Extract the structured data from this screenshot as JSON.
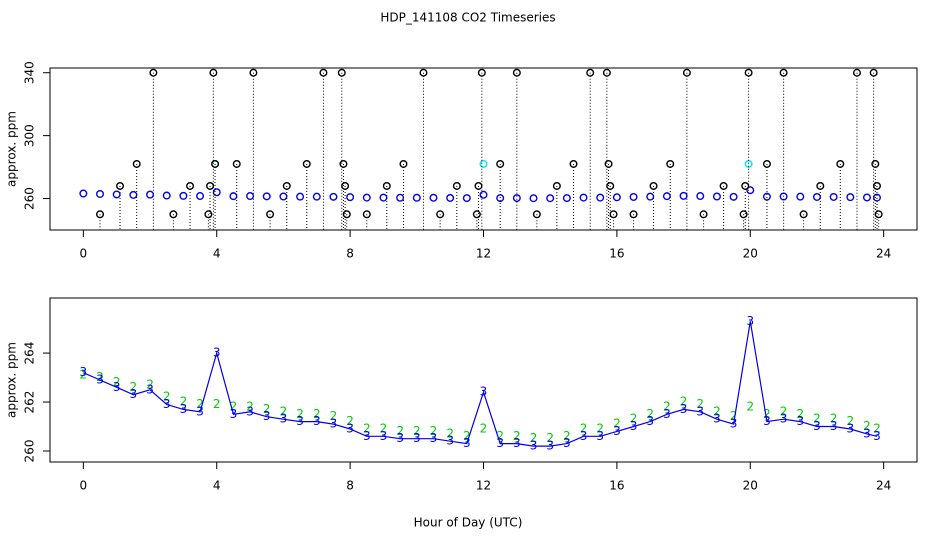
{
  "chart_data": [
    {
      "type": "scatter",
      "title": "HDP_141108  CO2 Timeseries",
      "ylabel": "approx. ppm",
      "xlim": [
        -1,
        25
      ],
      "ylim": [
        240,
        343
      ],
      "xticks": [
        0,
        4,
        8,
        12,
        16,
        20,
        24
      ],
      "yticks": [
        260,
        300,
        340
      ],
      "series": [
        {
          "color": "#0000ee",
          "marker": "circle",
          "line": false,
          "x": [
            0,
            0.5,
            1,
            1.5,
            2,
            2.5,
            3,
            3.5,
            4,
            4.5,
            5,
            5.5,
            6,
            6.5,
            7,
            7.5,
            8,
            8.5,
            9,
            9.5,
            10,
            10.5,
            11,
            11.5,
            12,
            12.5,
            13,
            13.5,
            14,
            14.5,
            15,
            15.5,
            16,
            16.5,
            17,
            17.5,
            18,
            18.5,
            19,
            19.5,
            20,
            20.5,
            21,
            21.5,
            22,
            22.5,
            23,
            23.5,
            23.8
          ],
          "values": [
            263.2,
            262.9,
            262.6,
            262.3,
            262.5,
            261.9,
            261.7,
            261.6,
            264.0,
            261.5,
            261.6,
            261.4,
            261.3,
            261.2,
            261.2,
            261.1,
            260.9,
            260.6,
            260.6,
            260.5,
            260.5,
            260.5,
            260.4,
            260.3,
            262.4,
            260.3,
            260.3,
            260.2,
            260.2,
            260.3,
            260.6,
            260.6,
            260.8,
            261.0,
            261.2,
            261.5,
            261.7,
            261.6,
            261.3,
            261.1,
            265.3,
            261.2,
            261.3,
            261.2,
            261.0,
            261.0,
            260.9,
            260.7,
            260.6
          ]
        },
        {
          "color": "#00e5ee",
          "marker": "circle",
          "line": false,
          "x": [
            3.95,
            12.0,
            19.95
          ],
          "values": [
            282,
            282,
            282
          ]
        },
        {
          "color": "#000000",
          "marker": "circle",
          "line": false,
          "drop": true,
          "x": [
            0.5,
            1.1,
            1.6,
            2.1,
            2.7,
            3.2,
            3.75,
            3.8,
            3.9,
            3.95,
            4.6,
            5.1,
            5.6,
            6.1,
            6.7,
            7.2,
            7.75,
            7.8,
            7.85,
            7.9,
            8.5,
            9.1,
            9.6,
            10.2,
            10.7,
            11.2,
            11.8,
            11.85,
            11.95,
            12.5,
            13.0,
            13.6,
            14.2,
            14.7,
            15.2,
            15.7,
            15.75,
            15.8,
            15.9,
            16.5,
            17.1,
            17.6,
            18.1,
            18.6,
            19.2,
            19.8,
            19.85,
            19.95,
            20.5,
            21.0,
            21.6,
            22.1,
            22.7,
            23.2,
            23.7,
            23.75,
            23.8,
            23.85
          ],
          "values": [
            250,
            268,
            282,
            340,
            250,
            268,
            250,
            268,
            340,
            282,
            282,
            340,
            250,
            268,
            282,
            340,
            340,
            282,
            268,
            250,
            250,
            268,
            282,
            340,
            250,
            268,
            250,
            268,
            340,
            282,
            340,
            250,
            268,
            282,
            340,
            340,
            282,
            268,
            250,
            250,
            268,
            282,
            340,
            250,
            268,
            250,
            268,
            340,
            282,
            340,
            250,
            268,
            282,
            340,
            340,
            282,
            268,
            250
          ]
        }
      ]
    },
    {
      "type": "scatter",
      "ylabel": "approx. ppm",
      "xlabel": "Hour of Day (UTC)",
      "xlim": [
        -1,
        25
      ],
      "ylim": [
        259.55,
        266.25
      ],
      "xticks": [
        0,
        4,
        8,
        12,
        16,
        20,
        24
      ],
      "yticks": [
        260,
        262,
        264
      ],
      "series": [
        {
          "color": "#00cc00",
          "marker": "2",
          "line": false,
          "x": [
            0,
            0.5,
            1,
            1.5,
            2,
            2.5,
            3,
            3.5,
            4,
            4.5,
            5,
            5.5,
            6,
            6.5,
            7,
            7.5,
            8,
            8.5,
            9,
            9.5,
            10,
            10.5,
            11,
            11.5,
            12,
            12.5,
            13,
            13.5,
            14,
            14.5,
            15,
            15.5,
            16,
            16.5,
            17,
            17.5,
            18,
            18.5,
            19,
            19.5,
            20,
            20.5,
            21,
            21.5,
            22,
            22.5,
            23,
            23.5,
            23.8
          ],
          "values": [
            263.1,
            263.0,
            262.8,
            262.6,
            262.7,
            262.2,
            262.0,
            261.9,
            261.9,
            261.8,
            261.8,
            261.7,
            261.6,
            261.5,
            261.5,
            261.4,
            261.2,
            260.9,
            260.9,
            260.8,
            260.8,
            260.8,
            260.7,
            260.6,
            260.9,
            260.6,
            260.6,
            260.5,
            260.5,
            260.6,
            260.9,
            260.9,
            261.1,
            261.3,
            261.5,
            261.8,
            262.0,
            261.9,
            261.6,
            261.4,
            261.8,
            261.5,
            261.6,
            261.5,
            261.3,
            261.3,
            261.2,
            261.0,
            260.9
          ]
        },
        {
          "color": "#0000ee",
          "marker": "3",
          "line": true,
          "x": [
            0,
            0.5,
            1,
            1.5,
            2,
            2.5,
            3,
            3.5,
            4,
            4.5,
            5,
            5.5,
            6,
            6.5,
            7,
            7.5,
            8,
            8.5,
            9,
            9.5,
            10,
            10.5,
            11,
            11.5,
            12,
            12.5,
            13,
            13.5,
            14,
            14.5,
            15,
            15.5,
            16,
            16.5,
            17,
            17.5,
            18,
            18.5,
            19,
            19.5,
            20,
            20.5,
            21,
            21.5,
            22,
            22.5,
            23,
            23.5,
            23.8
          ],
          "values": [
            263.2,
            262.9,
            262.6,
            262.3,
            262.5,
            261.9,
            261.7,
            261.6,
            264.0,
            261.5,
            261.6,
            261.4,
            261.3,
            261.2,
            261.2,
            261.1,
            260.9,
            260.6,
            260.6,
            260.5,
            260.5,
            260.5,
            260.4,
            260.3,
            262.4,
            260.3,
            260.3,
            260.2,
            260.2,
            260.3,
            260.6,
            260.6,
            260.8,
            261.0,
            261.2,
            261.5,
            261.7,
            261.6,
            261.3,
            261.1,
            265.3,
            261.2,
            261.3,
            261.2,
            261.0,
            261.0,
            260.9,
            260.7,
            260.6
          ]
        }
      ]
    }
  ]
}
